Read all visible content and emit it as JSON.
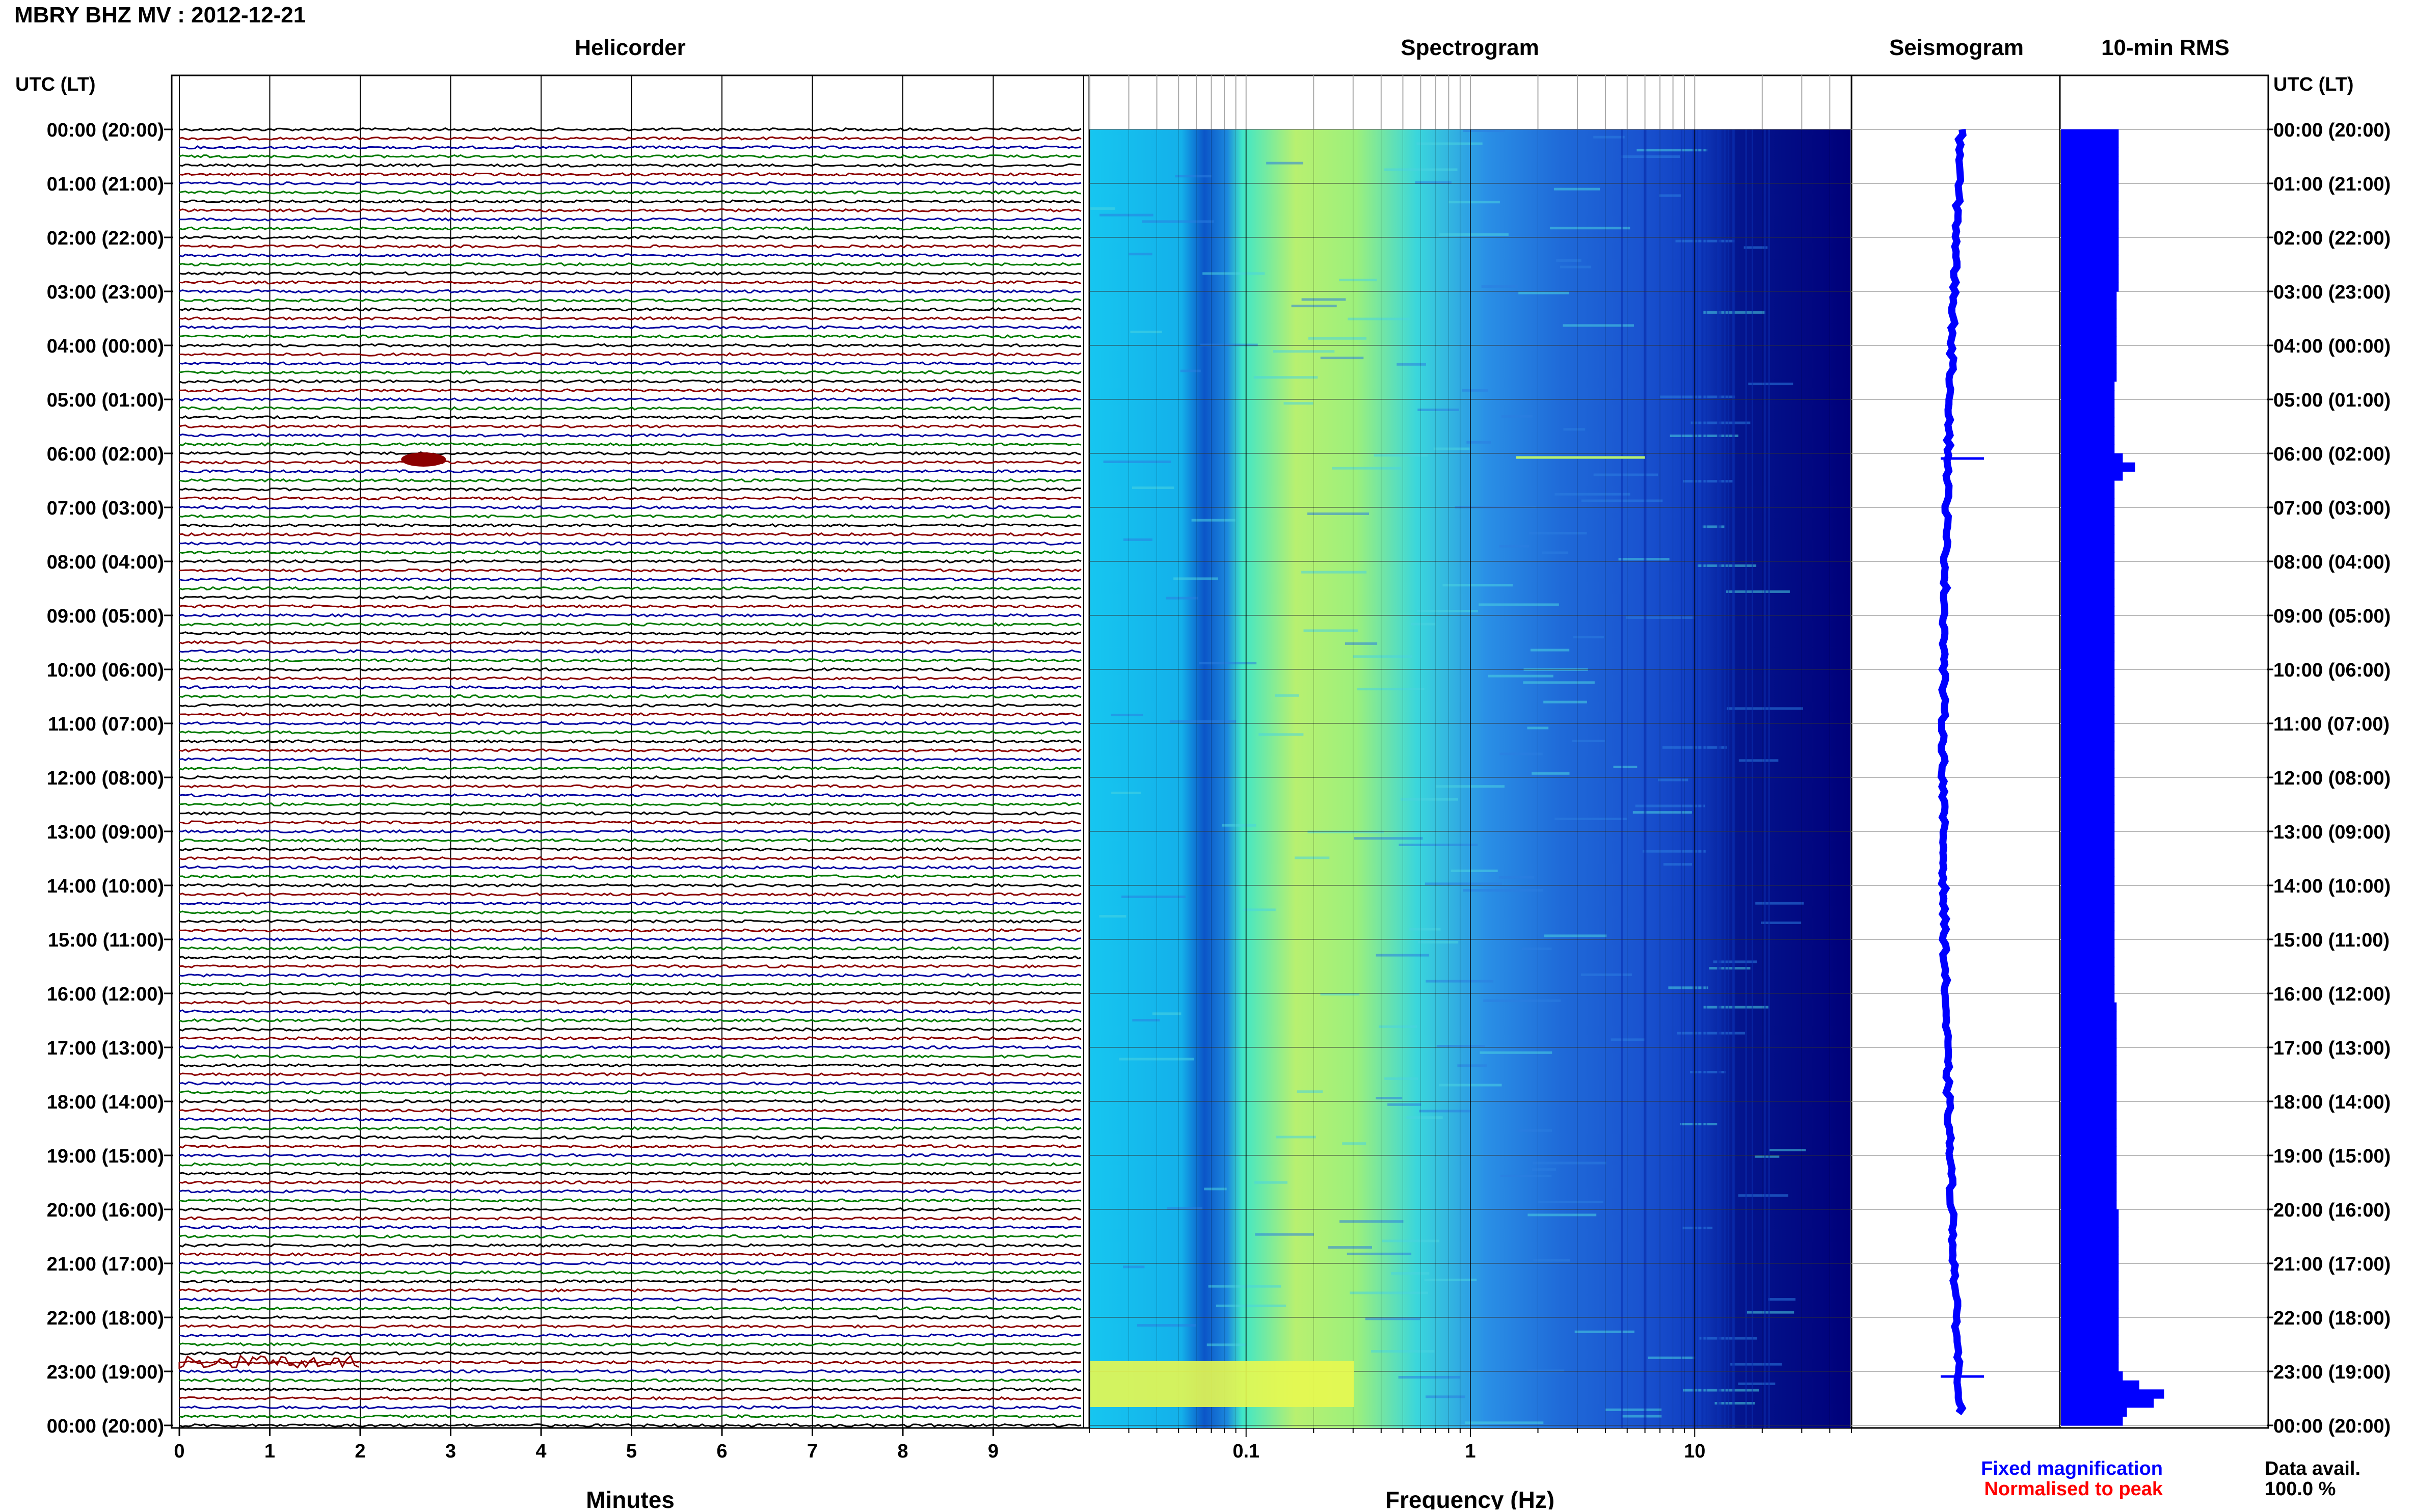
{
  "header": {
    "station": "MBRY BHZ MV : 2012-12-21"
  },
  "panels": {
    "helicorder": "Helicorder",
    "spectrogram": "Spectrogram",
    "seismogram": "Seismogram",
    "rms": "10-min RMS"
  },
  "time_axis": {
    "label": "UTC (LT)",
    "ticks": [
      "00:00 (20:00)",
      "01:00 (21:00)",
      "02:00 (22:00)",
      "03:00 (23:00)",
      "04:00 (00:00)",
      "05:00 (01:00)",
      "06:00 (02:00)",
      "07:00 (03:00)",
      "08:00 (04:00)",
      "09:00 (05:00)",
      "10:00 (06:00)",
      "11:00 (07:00)",
      "12:00 (08:00)",
      "13:00 (09:00)",
      "14:00 (10:00)",
      "15:00 (11:00)",
      "16:00 (12:00)",
      "17:00 (13:00)",
      "18:00 (14:00)",
      "19:00 (15:00)",
      "20:00 (16:00)",
      "21:00 (17:00)",
      "22:00 (18:00)",
      "23:00 (19:00)",
      "00:00 (20:00)"
    ]
  },
  "x_axes": {
    "minutes_label": "Minutes",
    "minutes_ticks": [
      "0",
      "1",
      "2",
      "3",
      "4",
      "5",
      "6",
      "7",
      "8",
      "9"
    ],
    "frequency_label": "Frequency (Hz)",
    "frequency_ticks": [
      "0.1",
      "1",
      "10"
    ]
  },
  "legend": {
    "fixed": "Fixed magnification",
    "normalised": "Normalised to peak",
    "fixed_color": "#0000ff",
    "normalised_color": "#ff0000"
  },
  "availability": {
    "label": "Data avail.",
    "value": "100.0 %"
  },
  "colors": {
    "trace_cycle": [
      "#000000",
      "#8b0000",
      "#0000a0",
      "#007a00"
    ],
    "rms_bar": "#0000ff",
    "seismogram": "#0000ff",
    "spectrogram_low": "#00007a",
    "spectrogram_high": "#ffff40"
  },
  "chart_data": [
    {
      "type": "line",
      "title": "Helicorder",
      "xlabel": "Minutes",
      "xlim": [
        0,
        10
      ],
      "ylim": [
        0,
        24
      ],
      "rows_per_hour": 6,
      "events": [
        {
          "time_utc": "06:00",
          "minute": 2.7,
          "note": "burst"
        },
        {
          "time_utc": "23:00",
          "minute": 0.5,
          "note": "noisy interval"
        }
      ]
    },
    {
      "type": "heatmap",
      "title": "Spectrogram",
      "xlabel": "Frequency (Hz)",
      "xscale": "log",
      "xlim": [
        0.02,
        50
      ],
      "ylim": [
        0,
        24
      ],
      "x_ticks": [
        0.1,
        1,
        10
      ]
    },
    {
      "type": "line",
      "title": "Seismogram",
      "ylim": [
        0,
        24
      ],
      "spikes_utc": [
        "06:00",
        "23:00"
      ]
    },
    {
      "type": "bar",
      "title": "10-min RMS",
      "ylim": [
        0,
        24
      ],
      "xlim": [
        0,
        1
      ],
      "bin_minutes": 10,
      "values_relative": [
        0.28,
        0.28,
        0.28,
        0.28,
        0.28,
        0.28,
        0.28,
        0.28,
        0.28,
        0.28,
        0.28,
        0.28,
        0.28,
        0.28,
        0.28,
        0.28,
        0.28,
        0.28,
        0.27,
        0.27,
        0.27,
        0.27,
        0.27,
        0.27,
        0.27,
        0.27,
        0.27,
        0.27,
        0.26,
        0.26,
        0.26,
        0.26,
        0.26,
        0.26,
        0.26,
        0.26,
        0.3,
        0.36,
        0.3,
        0.26,
        0.26,
        0.26,
        0.26,
        0.26,
        0.26,
        0.26,
        0.26,
        0.26,
        0.26,
        0.26,
        0.26,
        0.26,
        0.26,
        0.26,
        0.26,
        0.26,
        0.26,
        0.26,
        0.26,
        0.26,
        0.26,
        0.26,
        0.26,
        0.26,
        0.26,
        0.26,
        0.26,
        0.26,
        0.26,
        0.26,
        0.26,
        0.26,
        0.26,
        0.26,
        0.26,
        0.26,
        0.26,
        0.26,
        0.26,
        0.26,
        0.26,
        0.26,
        0.26,
        0.26,
        0.26,
        0.26,
        0.26,
        0.26,
        0.26,
        0.26,
        0.26,
        0.26,
        0.26,
        0.26,
        0.26,
        0.26,
        0.26,
        0.27,
        0.27,
        0.27,
        0.27,
        0.27,
        0.27,
        0.27,
        0.27,
        0.27,
        0.27,
        0.27,
        0.27,
        0.27,
        0.27,
        0.27,
        0.27,
        0.27,
        0.27,
        0.27,
        0.27,
        0.27,
        0.27,
        0.27,
        0.28,
        0.28,
        0.28,
        0.28,
        0.28,
        0.28,
        0.28,
        0.28,
        0.28,
        0.28,
        0.28,
        0.28,
        0.28,
        0.28,
        0.28,
        0.28,
        0.28,
        0.28,
        0.3,
        0.38,
        0.5,
        0.45,
        0.32,
        0.3
      ]
    }
  ]
}
